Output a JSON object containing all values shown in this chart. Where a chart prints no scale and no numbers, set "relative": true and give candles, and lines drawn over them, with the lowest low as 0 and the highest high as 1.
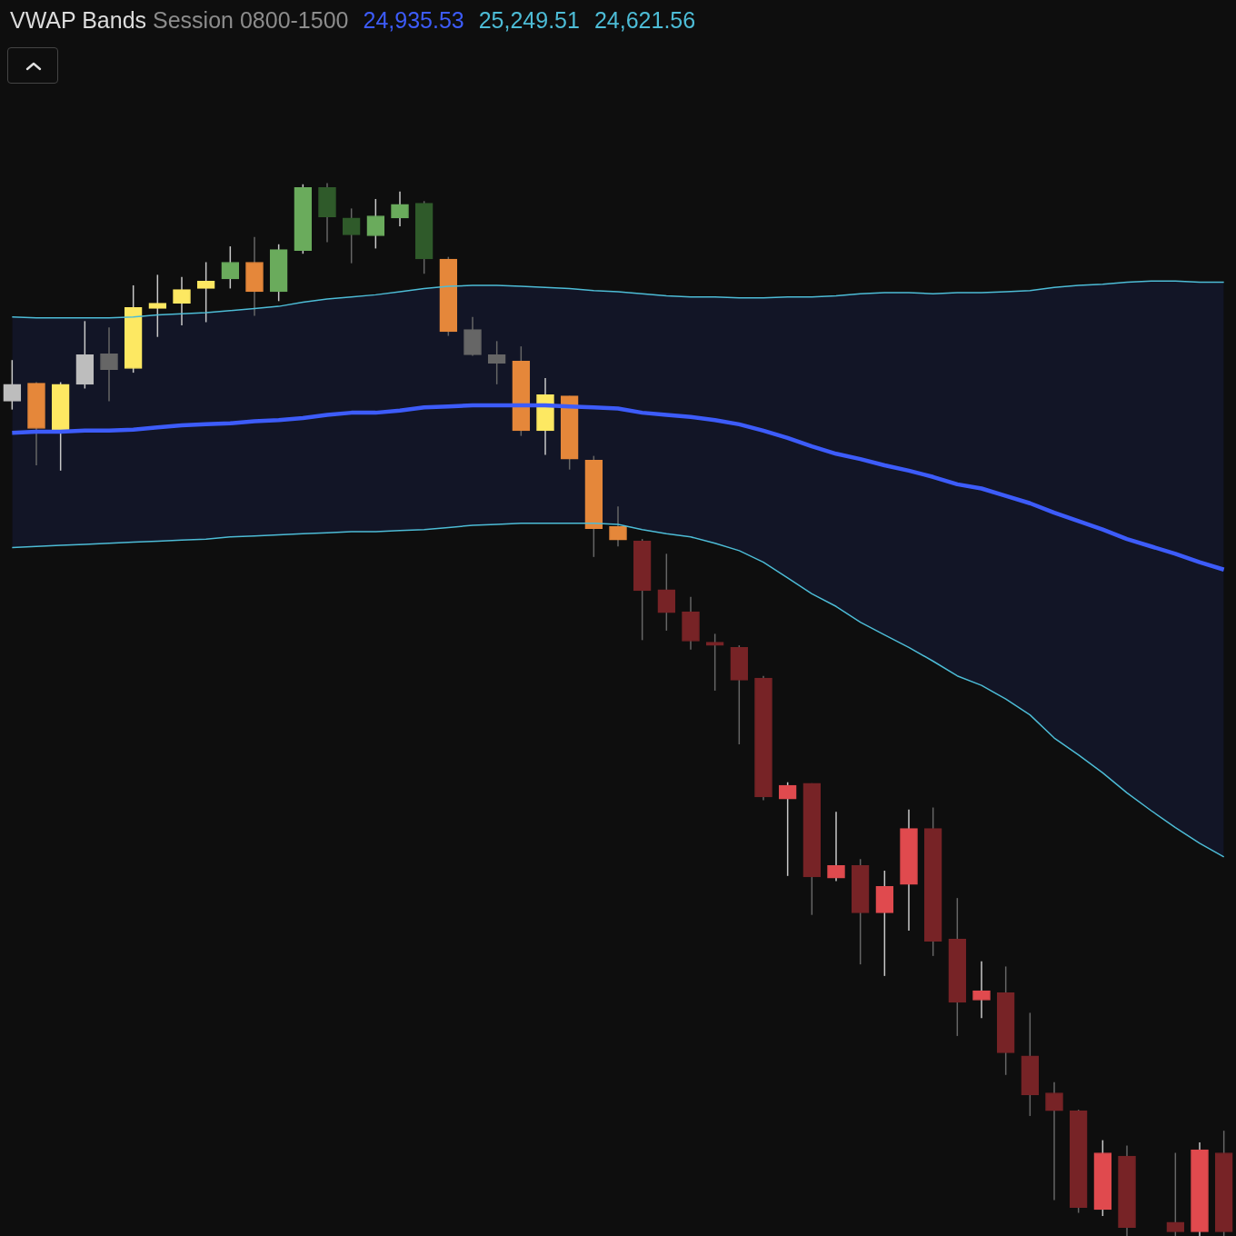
{
  "chart_data": {
    "type": "candlestick",
    "title": "VWAP Bands",
    "subtitle": "Session 0800-1500",
    "annotations": [
      "24,935.53",
      "25,249.51",
      "24,621.56"
    ],
    "relative": true,
    "categories": [
      null,
      null,
      null,
      null,
      null,
      null,
      null,
      null,
      null,
      null,
      null,
      null,
      null,
      null,
      null,
      null,
      null,
      null,
      null,
      null,
      null,
      null,
      null,
      null,
      null,
      null,
      null,
      null,
      null,
      null,
      null,
      null,
      null,
      null,
      null,
      null,
      null,
      null,
      null,
      null,
      null,
      null,
      null,
      null,
      null,
      null,
      null,
      null,
      null,
      null,
      null
    ],
    "ohlc": [
      [
        0.793,
        0.832,
        0.785,
        0.809
      ],
      [
        0.81,
        0.811,
        0.732,
        0.767
      ],
      [
        0.766,
        0.811,
        0.727,
        0.809
      ],
      [
        0.809,
        0.869,
        0.805,
        0.837
      ],
      [
        0.838,
        0.863,
        0.793,
        0.823
      ],
      [
        0.824,
        0.903,
        0.82,
        0.882
      ],
      [
        0.881,
        0.913,
        0.854,
        0.886
      ],
      [
        0.886,
        0.911,
        0.865,
        0.899
      ],
      [
        0.9,
        0.925,
        0.868,
        0.907
      ],
      [
        0.909,
        0.94,
        0.9,
        0.925
      ],
      [
        0.925,
        0.949,
        0.874,
        0.897
      ],
      [
        0.897,
        0.942,
        0.888,
        0.937
      ],
      [
        0.936,
        0.999,
        0.933,
        0.996
      ],
      [
        0.996,
        1,
        0.944,
        0.968
      ],
      [
        0.967,
        0.976,
        0.924,
        0.951
      ],
      [
        0.95,
        0.985,
        0.938,
        0.969
      ],
      [
        0.967,
        0.992,
        0.959,
        0.98
      ],
      [
        0.981,
        0.983,
        0.914,
        0.928
      ],
      [
        0.928,
        0.93,
        0.855,
        0.859
      ],
      [
        0.861,
        0.873,
        0.836,
        0.837
      ],
      [
        0.837,
        0.85,
        0.809,
        0.829
      ],
      [
        0.831,
        0.845,
        0.76,
        0.765
      ],
      [
        0.765,
        0.815,
        0.742,
        0.799
      ],
      [
        0.798,
        0.798,
        0.728,
        0.738
      ],
      [
        0.737,
        0.741,
        0.645,
        0.672
      ],
      [
        0.674,
        0.693,
        0.655,
        0.661
      ],
      [
        0.66,
        0.662,
        0.566,
        0.613
      ],
      [
        0.614,
        0.648,
        0.575,
        0.592
      ],
      [
        0.593,
        0.607,
        0.557,
        0.565
      ],
      [
        0.564,
        0.572,
        0.518,
        0.561
      ],
      [
        0.559,
        0.561,
        0.467,
        0.528
      ],
      [
        0.53,
        0.532,
        0.414,
        0.417
      ],
      [
        0.415,
        0.431,
        0.342,
        0.428
      ],
      [
        0.43,
        0.43,
        0.305,
        0.341
      ],
      [
        0.34,
        0.403,
        0.337,
        0.352
      ],
      [
        0.352,
        0.358,
        0.258,
        0.307
      ],
      [
        0.307,
        0.347,
        0.247,
        0.332
      ],
      [
        0.334,
        0.405,
        0.29,
        0.387
      ],
      [
        0.387,
        0.407,
        0.266,
        0.28
      ],
      [
        0.282,
        0.321,
        0.19,
        0.222
      ],
      [
        0.224,
        0.261,
        0.207,
        0.233
      ],
      [
        0.231,
        0.256,
        0.153,
        0.174
      ],
      [
        0.171,
        0.212,
        0.114,
        0.134
      ],
      [
        0.136,
        0.146,
        0.034,
        0.119
      ],
      [
        0.119,
        0.12,
        0.022,
        0.027
      ],
      [
        0.025,
        0.091,
        0.019,
        0.079
      ],
      [
        0.076,
        0.086,
        0,
        0.008
      ],
      null,
      [
        0.013,
        0.079,
        0,
        0.004
      ],
      [
        0.004,
        0.089,
        0,
        0.082
      ],
      [
        0.079,
        0.1,
        0,
        0.004
      ]
    ],
    "colors": [
      "#bdbdbd",
      "#e5873a",
      "#fde862",
      "#bdbdbd",
      "#666666",
      "#fde862",
      "#fde862",
      "#fde862",
      "#fde862",
      "#6aab5c",
      "#e5873a",
      "#6aab5c",
      "#6aab5c",
      "#2f5a2a",
      "#2f5a2a",
      "#6aab5c",
      "#6aab5c",
      "#2f5a2a",
      "#e5873a",
      "#666666",
      "#666666",
      "#e5873a",
      "#fde862",
      "#e5873a",
      "#e5873a",
      "#e5873a",
      "#772326",
      "#772326",
      "#772326",
      "#772326",
      "#772326",
      "#772326",
      "#e04a4e",
      "#772326",
      "#e04a4e",
      "#772326",
      "#e04a4e",
      "#e04a4e",
      "#772326",
      "#772326",
      "#e04a4e",
      "#772326",
      "#772326",
      "#772326",
      "#772326",
      "#e04a4e",
      "#772326",
      null,
      "#772326",
      "#e04a4e",
      "#772326"
    ],
    "series": [
      {
        "type": "line",
        "color": "#3d5cfa",
        "upper": [
          0.873,
          0.872,
          0.872,
          0.872,
          0.872,
          0.873,
          0.875,
          0.876,
          0.877,
          0.879,
          0.881,
          0.883,
          0.887,
          0.89,
          0.892,
          0.894,
          0.897,
          0.9,
          0.902,
          0.903,
          0.903,
          0.902,
          0.901,
          0.9,
          0.898,
          0.897,
          0.895,
          0.893,
          0.892,
          0.892,
          0.891,
          0.891,
          0.892,
          0.892,
          0.893,
          0.895,
          0.896,
          0.896,
          0.895,
          0.896,
          0.896,
          0.897,
          0.898,
          0.901,
          0.903,
          0.904,
          0.906,
          0.907,
          0.907,
          0.906,
          0.906
        ],
        "lower": [
          0.654,
          0.655,
          0.656,
          0.657,
          0.658,
          0.659,
          0.66,
          0.661,
          0.662,
          0.664,
          0.665,
          0.666,
          0.667,
          0.668,
          0.669,
          0.669,
          0.67,
          0.671,
          0.673,
          0.675,
          0.676,
          0.677,
          0.677,
          0.677,
          0.677,
          0.676,
          0.671,
          0.667,
          0.664,
          0.658,
          0.651,
          0.64,
          0.625,
          0.61,
          0.598,
          0.583,
          0.571,
          0.559,
          0.546,
          0.532,
          0.523,
          0.51,
          0.495,
          0.473,
          0.457,
          0.44,
          0.421,
          0.404,
          0.388,
          0.373,
          0.36
        ],
        "values": [
          0.763,
          0.764,
          0.764,
          0.765,
          0.765,
          0.766,
          0.768,
          0.77,
          0.771,
          0.772,
          0.774,
          0.775,
          0.777,
          0.78,
          0.782,
          0.782,
          0.784,
          0.787,
          0.788,
          0.789,
          0.789,
          0.789,
          0.789,
          0.788,
          0.787,
          0.786,
          0.782,
          0.78,
          0.778,
          0.775,
          0.771,
          0.765,
          0.758,
          0.75,
          0.743,
          0.738,
          0.732,
          0.727,
          0.721,
          0.714,
          0.71,
          0.703,
          0.696,
          0.687,
          0.679,
          0.671,
          0.662,
          0.655,
          0.648,
          0.64,
          0.633
        ]
      },
      {
        "type": "line",
        "color": "#4dbcd6",
        "values": [
          0.873,
          0.872,
          0.872,
          0.872,
          0.872,
          0.873,
          0.875,
          0.876,
          0.877,
          0.879,
          0.881,
          0.883,
          0.887,
          0.89,
          0.892,
          0.894,
          0.897,
          0.9,
          0.902,
          0.903,
          0.903,
          0.902,
          0.901,
          0.9,
          0.898,
          0.897,
          0.895,
          0.893,
          0.892,
          0.892,
          0.891,
          0.891,
          0.892,
          0.892,
          0.893,
          0.895,
          0.896,
          0.896,
          0.895,
          0.896,
          0.896,
          0.897,
          0.898,
          0.901,
          0.903,
          0.904,
          0.906,
          0.907,
          0.907,
          0.906,
          0.906
        ]
      },
      {
        "type": "line",
        "color": "#4dbcd6",
        "values": [
          0.654,
          0.655,
          0.656,
          0.657,
          0.658,
          0.659,
          0.66,
          0.661,
          0.662,
          0.664,
          0.665,
          0.666,
          0.667,
          0.668,
          0.669,
          0.669,
          0.67,
          0.671,
          0.673,
          0.675,
          0.676,
          0.677,
          0.677,
          0.677,
          0.677,
          0.676,
          0.671,
          0.667,
          0.664,
          0.658,
          0.651,
          0.64,
          0.625,
          0.61,
          0.598,
          0.583,
          0.571,
          0.559,
          0.546,
          0.532,
          0.523,
          0.51,
          0.495,
          0.473,
          0.457,
          0.44,
          0.421,
          0.404,
          0.388,
          0.373,
          0.36
        ]
      }
    ]
  }
}
